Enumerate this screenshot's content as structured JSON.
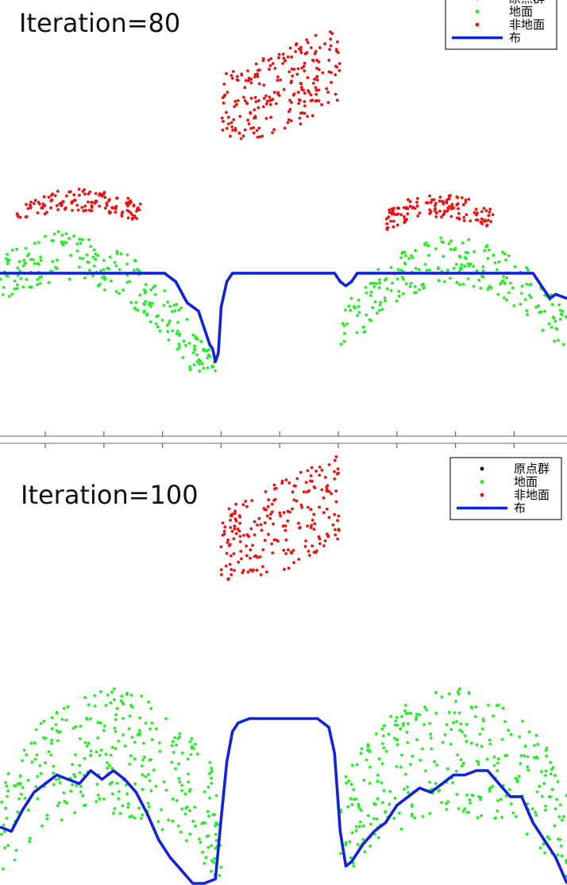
{
  "colors": {
    "original_points": "#000000",
    "ground": "#22ee22",
    "non_ground": "#ee1111",
    "cloth": "#1122dd",
    "axis": "#9a9a9a",
    "background": "#ffffff"
  },
  "legend": {
    "entries": [
      "原点群",
      "地面",
      "非地面",
      "布"
    ],
    "placement": "top-right"
  },
  "chart_data": [
    {
      "type": "scatter",
      "title": "Iteration=80",
      "legend": [
        "原点群",
        "地面",
        "非地面",
        "布"
      ],
      "legend_position": "top-right",
      "grid": false,
      "x_axis_ticks_visible": true,
      "series": [
        {
          "name": "非地面",
          "style": "points",
          "clusters": [
            {
              "x_range": [
                0.39,
                0.6
              ],
              "y_range": [
                0.66,
                0.96
              ],
              "count": 230,
              "trend": "rising to the right"
            },
            {
              "x_range": [
                0.03,
                0.25
              ],
              "y_range": [
                0.49,
                0.57
              ],
              "count": 130,
              "trend": "dome top"
            },
            {
              "x_range": [
                0.68,
                0.87
              ],
              "y_range": [
                0.47,
                0.56
              ],
              "count": 130,
              "trend": "dome top"
            }
          ]
        },
        {
          "name": "地面",
          "style": "points",
          "clusters": [
            {
              "x_range": [
                0.0,
                0.38
              ],
              "y_range": [
                0.13,
                0.47
              ],
              "count": 230,
              "trend": "right flank descending to trough"
            },
            {
              "x_range": [
                0.6,
                1.0
              ],
              "y_range": [
                0.2,
                0.46
              ],
              "count": 230,
              "trend": "arch with both flanks"
            }
          ]
        },
        {
          "name": "布",
          "style": "line",
          "x": [
            0.0,
            0.29,
            0.31,
            0.33,
            0.35,
            0.37,
            0.375,
            0.38,
            0.385,
            0.39,
            0.4,
            0.41,
            0.42,
            0.59,
            0.6,
            0.61,
            0.62,
            0.63,
            0.94,
            0.96,
            0.97,
            0.98,
            1.0
          ],
          "y": [
            0.37,
            0.37,
            0.35,
            0.3,
            0.28,
            0.2,
            0.19,
            0.16,
            0.18,
            0.29,
            0.35,
            0.37,
            0.37,
            0.37,
            0.35,
            0.34,
            0.35,
            0.37,
            0.37,
            0.33,
            0.31,
            0.32,
            0.31
          ]
        }
      ]
    },
    {
      "type": "scatter",
      "title": "Iteration=100",
      "legend": [
        "原点群",
        "地面",
        "非地面",
        "布"
      ],
      "legend_position": "top-right",
      "grid": false,
      "series": [
        {
          "name": "非地面",
          "style": "points",
          "clusters": [
            {
              "x_range": [
                0.39,
                0.6
              ],
              "y_range": [
                0.67,
                0.99
              ],
              "count": 220,
              "trend": "rising to the right"
            }
          ]
        },
        {
          "name": "地面",
          "style": "points",
          "clusters": [
            {
              "x_range": [
                0.0,
                0.39
              ],
              "y_range": [
                0.0,
                0.45
              ],
              "count": 330,
              "trend": "dome"
            },
            {
              "x_range": [
                0.6,
                1.0
              ],
              "y_range": [
                0.0,
                0.45
              ],
              "count": 330,
              "trend": "dome"
            }
          ]
        },
        {
          "name": "布",
          "style": "line",
          "x": [
            0.0,
            0.02,
            0.04,
            0.06,
            0.08,
            0.1,
            0.12,
            0.14,
            0.16,
            0.18,
            0.2,
            0.22,
            0.24,
            0.26,
            0.28,
            0.3,
            0.32,
            0.34,
            0.36,
            0.38,
            0.39,
            0.4,
            0.41,
            0.42,
            0.44,
            0.5,
            0.56,
            0.58,
            0.59,
            0.6,
            0.61,
            0.62,
            0.64,
            0.66,
            0.68,
            0.7,
            0.72,
            0.74,
            0.76,
            0.78,
            0.8,
            0.82,
            0.84,
            0.86,
            0.88,
            0.9,
            0.92,
            0.94,
            0.96,
            0.98,
            1.0
          ],
          "y": [
            0.13,
            0.12,
            0.17,
            0.21,
            0.23,
            0.25,
            0.24,
            0.23,
            0.26,
            0.24,
            0.26,
            0.24,
            0.21,
            0.16,
            0.1,
            0.06,
            0.03,
            0.0,
            0.0,
            0.01,
            0.15,
            0.28,
            0.35,
            0.37,
            0.38,
            0.38,
            0.38,
            0.36,
            0.3,
            0.12,
            0.04,
            0.05,
            0.09,
            0.12,
            0.14,
            0.18,
            0.2,
            0.22,
            0.21,
            0.23,
            0.25,
            0.25,
            0.26,
            0.26,
            0.23,
            0.2,
            0.2,
            0.14,
            0.1,
            0.06,
            0.0
          ]
        }
      ]
    }
  ]
}
